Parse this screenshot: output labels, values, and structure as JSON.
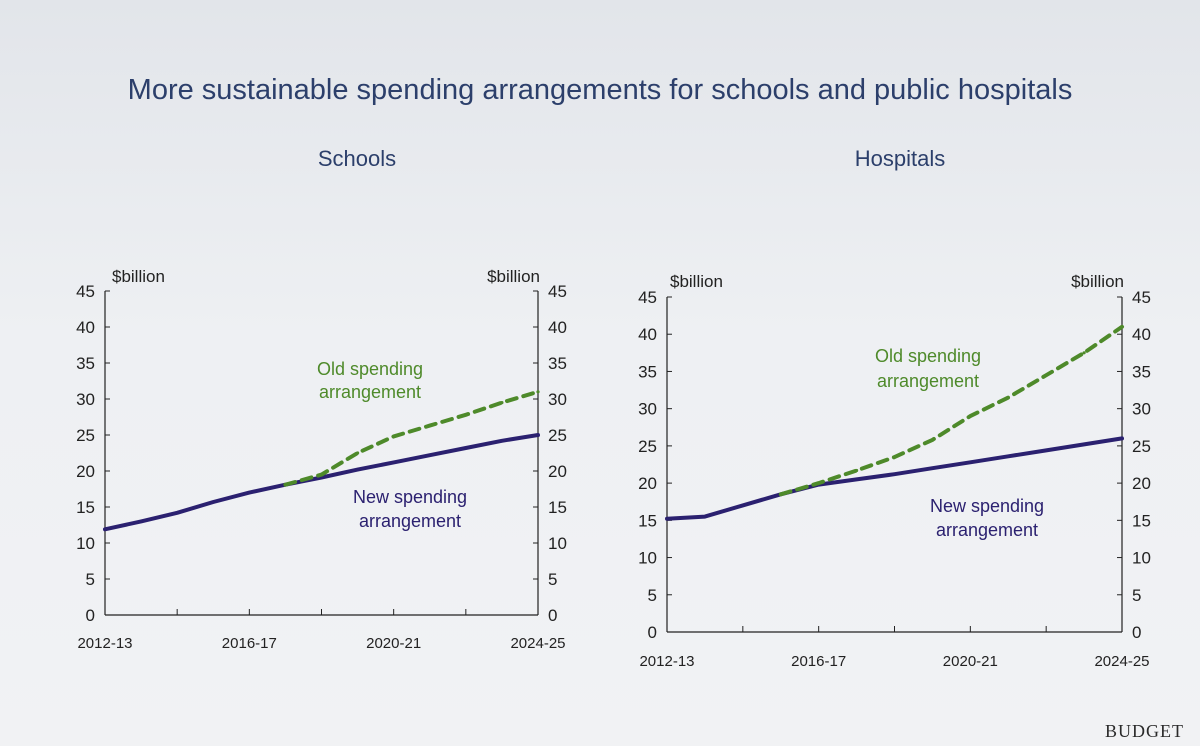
{
  "page": {
    "title": "More sustainable spending arrangements for schools and public hospitals",
    "footer": "BUDGET"
  },
  "colors": {
    "new": "#2b2170",
    "old": "#4e8a2a",
    "text": "#2c3f6b",
    "axis": "#222222"
  },
  "chart_data": [
    {
      "type": "line",
      "title": "Schools",
      "ylabel_left": "$billion",
      "ylabel_right": "$billion",
      "ylim": [
        0,
        45
      ],
      "yticks": [
        0,
        5,
        10,
        15,
        20,
        25,
        30,
        35,
        40,
        45
      ],
      "xlim": [
        2012,
        2024
      ],
      "x_tick_labels": [
        "2012-13",
        "2016-17",
        "2020-21",
        "2024-25"
      ],
      "grid": false,
      "series": [
        {
          "name": "New spending arrangement",
          "style": "solid",
          "x": [
            "2012-13",
            "2013-14",
            "2014-15",
            "2015-16",
            "2016-17",
            "2017-18",
            "2018-19",
            "2019-20",
            "2020-21",
            "2021-22",
            "2022-23",
            "2023-24",
            "2024-25"
          ],
          "y": [
            11.9,
            13,
            14.2,
            15.7,
            17,
            18.1,
            19.1,
            20.2,
            21.2,
            22.2,
            23.2,
            24.2,
            25
          ]
        },
        {
          "name": "Old spending arrangement",
          "style": "dashed",
          "x": [
            "2017-18",
            "2018-19",
            "2019-20",
            "2020-21",
            "2021-22",
            "2022-23",
            "2023-24",
            "2024-25"
          ],
          "y": [
            18.1,
            19.5,
            22.5,
            24.8,
            26.3,
            27.8,
            29.5,
            31
          ]
        }
      ],
      "annotations": {
        "old_line1": "Old spending",
        "old_line2": "arrangement",
        "new_line1": "New spending",
        "new_line2": "arrangement"
      }
    },
    {
      "type": "line",
      "title": "Hospitals",
      "ylabel_left": "$billion",
      "ylabel_right": "$billion",
      "ylim": [
        0,
        45
      ],
      "yticks": [
        0,
        5,
        10,
        15,
        20,
        25,
        30,
        35,
        40,
        45
      ],
      "xlim": [
        2012,
        2024
      ],
      "x_tick_labels": [
        "2012-13",
        "2016-17",
        "2020-21",
        "2024-25"
      ],
      "grid": false,
      "series": [
        {
          "name": "New spending arrangement",
          "style": "solid",
          "x": [
            "2012-13",
            "2013-14",
            "2014-15",
            "2015-16",
            "2016-17",
            "2017-18",
            "2018-19",
            "2019-20",
            "2020-21",
            "2021-22",
            "2022-23",
            "2023-24",
            "2024-25"
          ],
          "y": [
            15.2,
            15.5,
            17,
            18.5,
            19.8,
            20.5,
            21.2,
            22,
            22.8,
            23.6,
            24.4,
            25.2,
            26
          ]
        },
        {
          "name": "Old spending arrangement",
          "style": "dashed",
          "x": [
            "2015-16",
            "2016-17",
            "2017-18",
            "2018-19",
            "2019-20",
            "2020-21",
            "2021-22",
            "2022-23",
            "2023-24",
            "2024-25"
          ],
          "y": [
            18.5,
            20,
            21.7,
            23.5,
            25.8,
            29,
            31.5,
            34.5,
            37.5,
            41
          ]
        }
      ],
      "annotations": {
        "old_line1": "Old spending",
        "old_line2": "arrangement",
        "new_line1": "New spending",
        "new_line2": "arrangement"
      }
    }
  ]
}
